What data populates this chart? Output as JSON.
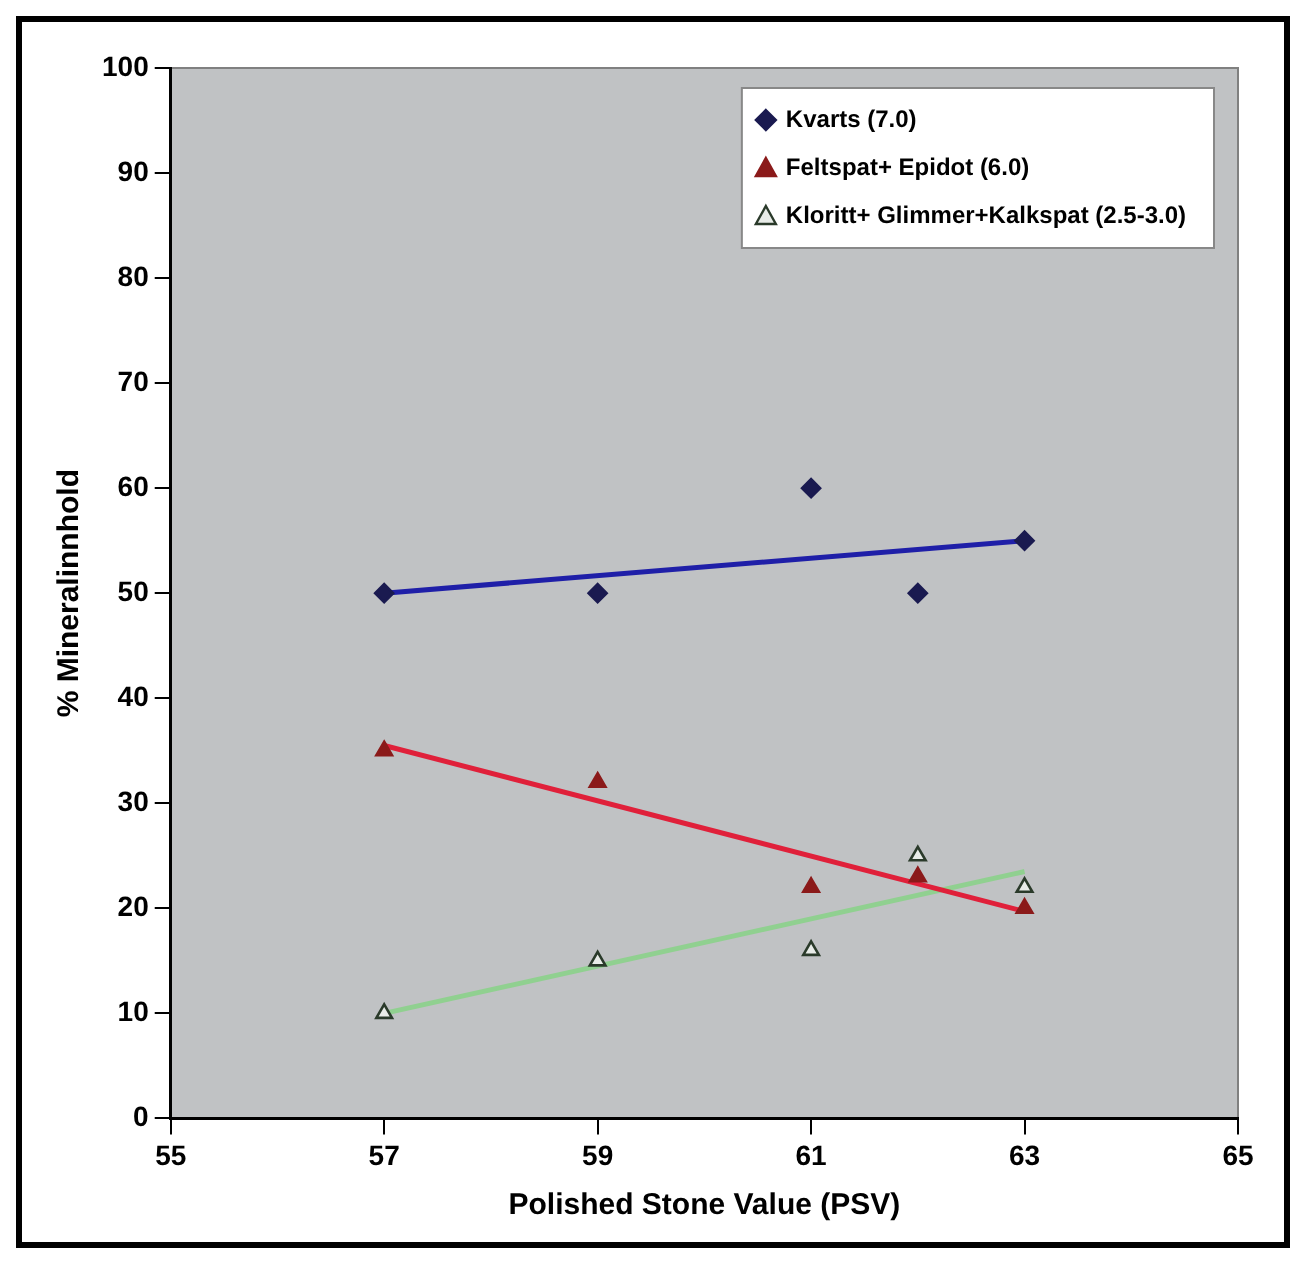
{
  "chart_data": {
    "type": "scatter",
    "xlabel": "Polished Stone Value (PSV)",
    "ylabel": "% Mineralinnhold",
    "xlim": [
      55,
      65
    ],
    "xticks": [
      55,
      57,
      59,
      61,
      63,
      65
    ],
    "ylim": [
      0,
      100
    ],
    "yticks": [
      0,
      10,
      20,
      30,
      40,
      50,
      60,
      70,
      80,
      90,
      100
    ],
    "grid": false,
    "legend": "top right",
    "series": [
      {
        "name": "Kvarts (7.0)",
        "color": "#1a1a50",
        "marker": "diamond",
        "x": [
          57,
          59,
          61,
          62,
          63
        ],
        "values": [
          50,
          50,
          60,
          50,
          55
        ]
      },
      {
        "name": "Feltspat+ Epidot (6.0)",
        "color": "#8b1a1a",
        "marker": "triangle",
        "x": [
          57,
          59,
          61,
          62,
          63
        ],
        "values": [
          35,
          32,
          22,
          23,
          20
        ]
      },
      {
        "name": "Kloritt+ Glimmer+Kalkspat (2.5-3.0)",
        "color": "#2a3a2a",
        "marker": "triangle",
        "x": [
          57,
          59,
          61,
          62,
          63
        ],
        "values": [
          10,
          15,
          16,
          25,
          22
        ]
      },
      {
        "type": "line",
        "color": "#1f1fa8",
        "marker": "none",
        "x": [
          57,
          63
        ],
        "values": [
          50,
          55
        ]
      },
      {
        "type": "line",
        "color": "#e0203a",
        "marker": "none",
        "x": [
          57,
          63
        ],
        "values": [
          35.5,
          19.7
        ]
      },
      {
        "type": "line",
        "color": "#90d090",
        "marker": "none",
        "x": [
          57,
          63
        ],
        "values": [
          10,
          23.5
        ]
      }
    ]
  }
}
